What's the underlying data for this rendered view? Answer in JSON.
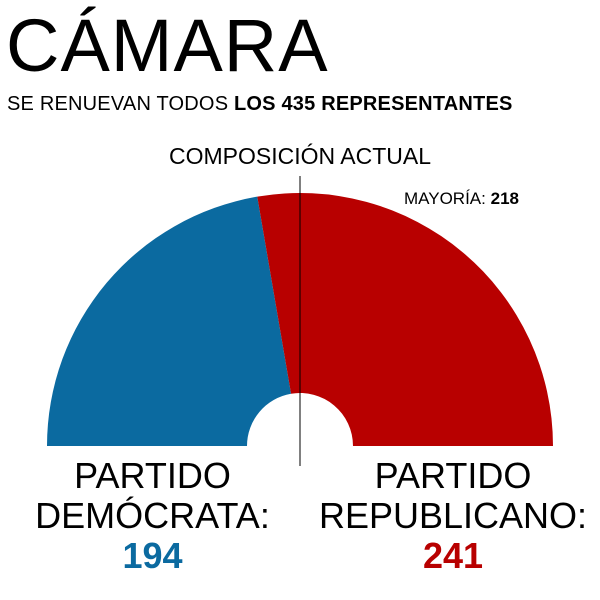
{
  "header": {
    "title": "CÁMARA",
    "subtitle_prefix": "SE RENUEVAN TODOS ",
    "subtitle_bold": "LOS 435 REPRESENTANTES"
  },
  "chart_data": {
    "type": "pie",
    "title": "COMPOSICIÓN ACTUAL",
    "majority_label": "MAYORÍA:",
    "majority_value": 218,
    "total": 435,
    "series": [
      {
        "name_line1": "PARTIDO",
        "name_line2": "DEMÓCRATA:",
        "value": 194,
        "color": "#0b6aa0"
      },
      {
        "name_line1": "PARTIDO",
        "name_line2": "REPUBLICANO:",
        "value": 241,
        "color": "#b80000"
      }
    ]
  }
}
